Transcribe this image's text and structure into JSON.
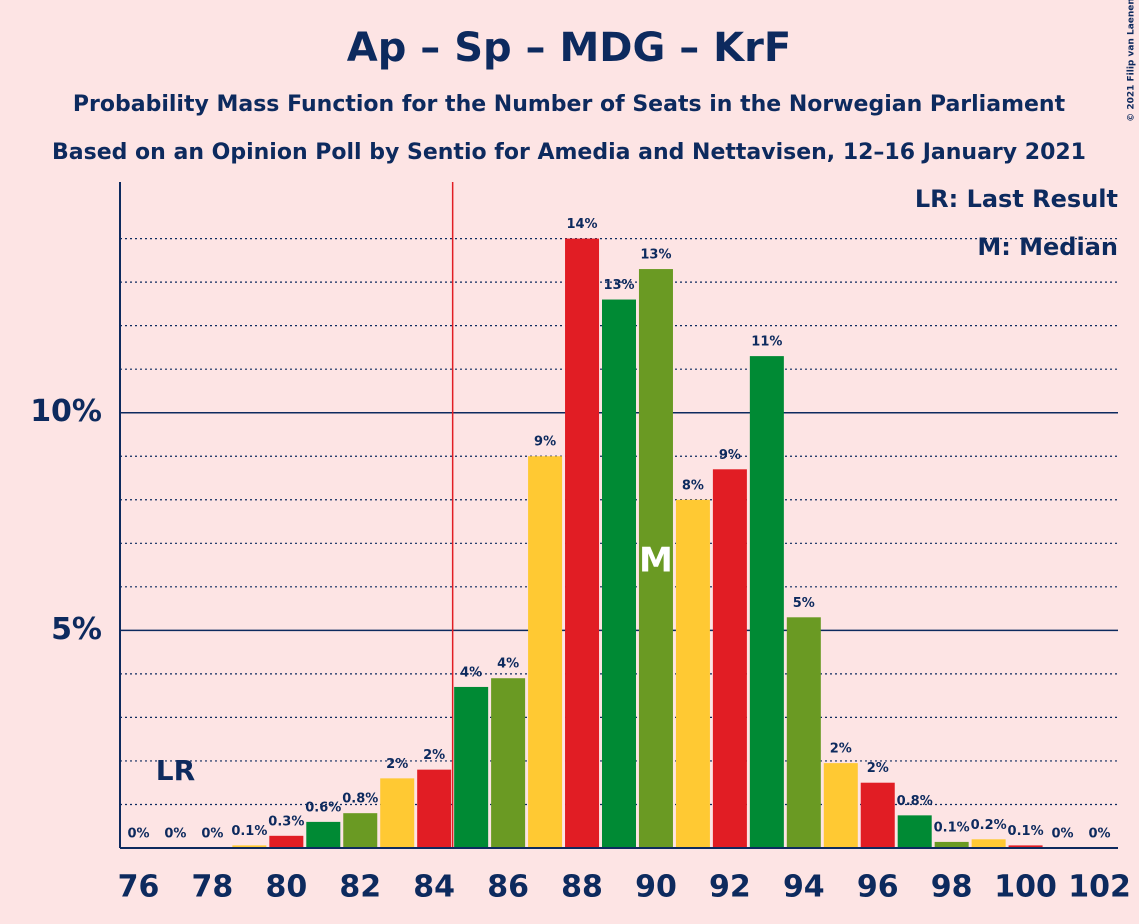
{
  "chart_data": {
    "type": "bar",
    "title": "Ap – Sp – MDG – KrF",
    "subtitle": "Probability Mass Function for the Number of Seats in the Norwegian Parliament",
    "subtitle2": "Based on an Opinion Poll by Sentio for Amedia and Nettavisen, 12–16 January 2021",
    "legend": [
      "LR: Last Result",
      "M: Median"
    ],
    "last_result_label": "LR",
    "last_result": 77,
    "median_label": "M",
    "median": 90,
    "majority": 85,
    "copyright": "© 2021 Filip van Laenen",
    "categories": [
      76,
      null,
      78,
      null,
      80,
      null,
      82,
      null,
      84,
      null,
      86,
      null,
      88,
      null,
      90,
      null,
      92,
      null,
      94,
      null,
      96,
      null,
      98,
      null,
      100,
      null,
      102
    ],
    "values": [
      0,
      0,
      0,
      0.06,
      0.28,
      0.6,
      0.8,
      1.6,
      1.8,
      3.7,
      3.9,
      9.0,
      14.0,
      12.6,
      13.3,
      8.0,
      8.7,
      11.3,
      5.3,
      1.95,
      1.5,
      0.75,
      0.14,
      0.2,
      0.06,
      0,
      0
    ],
    "value_labels": [
      "0%",
      "0%",
      "0%",
      "0.1%",
      "0.3%",
      "0.6%",
      "0.8%",
      "2%",
      "2%",
      "4%",
      "4%",
      "9%",
      "14%",
      "13%",
      "13%",
      "8%",
      "9%",
      "11%",
      "5%",
      "2%",
      "2%",
      "0.8%",
      "0.1%",
      "0.2%",
      "0.1%",
      "0%",
      "0%"
    ],
    "colors": [
      "#e11d24",
      "#008a34",
      "#6a9a23",
      "#ffc933"
    ],
    "xlim": [
      75.5,
      102.5
    ],
    "ylim": [
      0,
      15.3
    ],
    "yticks": [
      {
        "value": 5,
        "label": "5%"
      },
      {
        "value": 10,
        "label": "10%"
      }
    ],
    "minor_gridlines": [
      1,
      2,
      3,
      4,
      6,
      7,
      8,
      9,
      11,
      12,
      13,
      14
    ],
    "grid": true
  }
}
